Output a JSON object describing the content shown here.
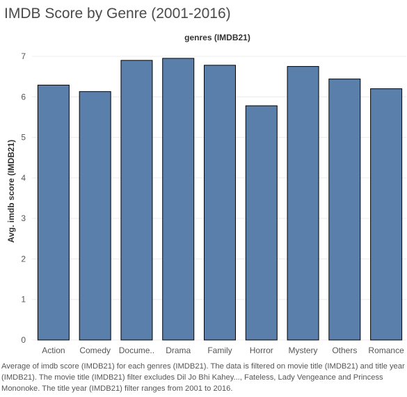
{
  "chart_data": {
    "type": "bar",
    "title": "IMDB Score by Genre (2001-2016)",
    "column_header": "genres (IMDB21)",
    "ylabel": "Avg. imdb score (IMDB21)",
    "xlabel": "",
    "categories": [
      "Action",
      "Comedy",
      "Docume..",
      "Drama",
      "Family",
      "Horror",
      "Mystery",
      "Others",
      "Romance"
    ],
    "values": [
      6.29,
      6.13,
      6.9,
      6.95,
      6.78,
      5.78,
      6.75,
      6.44,
      6.2
    ],
    "ylim": [
      0,
      7
    ],
    "yticks": [
      0,
      1,
      2,
      3,
      4,
      5,
      6,
      7
    ],
    "grid": true,
    "legend": "none",
    "bar_color": "#5b7fab",
    "bar_outline": "#000000"
  },
  "caption": "Average of imdb score (IMDB21) for each genres (IMDB21). The data is filtered on movie title (IMDB21) and title year (IMDB21). The movie title (IMDB21) filter excludes Dil Jo Bhi Kahey..., Fateless, Lady Vengeance and Princess Mononoke. The title year (IMDB21) filter ranges from 2001 to 2016."
}
